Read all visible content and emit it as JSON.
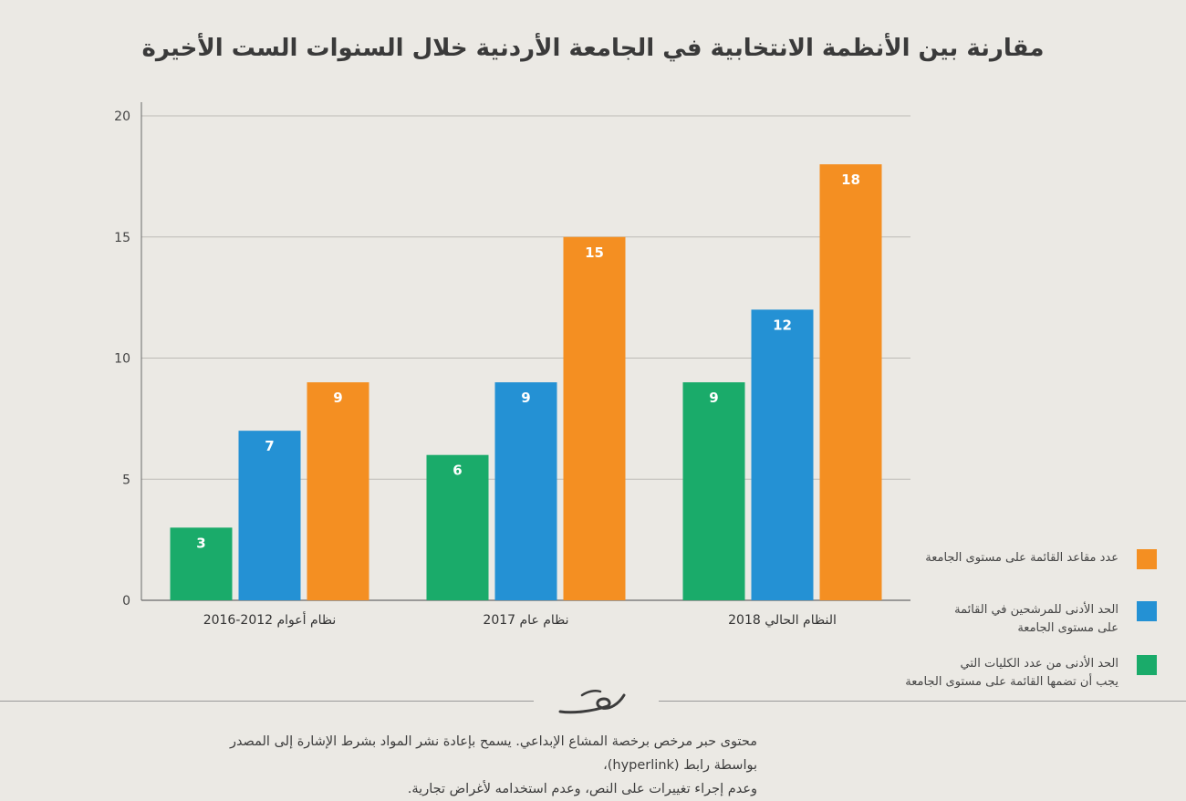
{
  "colors": {
    "green": "#1aab6a",
    "blue": "#2491d4",
    "orange": "#f48f22",
    "grid": "#bdbbb6",
    "axis": "#6a6a6a"
  },
  "chart_data": {
    "type": "bar",
    "title": "مقارنة بين الأنظمة الانتخابية في الجامعة الأردنية خلال السنوات الست الأخيرة",
    "categories": [
      "نظام أعوام 2012-2016",
      "نظام عام 2017",
      "النظام الحالي 2018"
    ],
    "series": [
      {
        "name": "الحد الأدنى من عدد الكليات التي يجب أن تضمها القائمة على مستوى الجامعة",
        "color": "#1aab6a",
        "values": [
          3,
          6,
          9
        ]
      },
      {
        "name": "الحد الأدنى للمرشحين في القائمة على مستوى الجامعة",
        "color": "#2491d4",
        "values": [
          7,
          9,
          12
        ]
      },
      {
        "name": "عدد مقاعد القائمة على مستوى الجامعة",
        "color": "#f48f22",
        "values": [
          9,
          15,
          18
        ]
      }
    ],
    "ylim": [
      0,
      20
    ],
    "yticks": [
      0,
      5,
      10,
      15,
      20
    ],
    "grid": true,
    "legend_position": "right"
  },
  "legend": {
    "orange_line1": "عدد مقاعد القائمة على مستوى الجامعة",
    "blue_line1": "الحد الأدنى للمرشحين في القائمة",
    "blue_line2": "على مستوى الجامعة",
    "green_line1": "الحد الأدنى من عدد الكليات التي",
    "green_line2": "يجب أن تضمها القائمة على مستوى الجامعة"
  },
  "footer": {
    "line1": "محتوى حبر مرخص برخصة المشاع الإبداعي. يسمح بإعادة نشر المواد بشرط الإشارة إلى المصدر بواسطة رابط (hyperlink)،",
    "line2": "وعدم إجراء تغييرات على النص، وعدم استخدامه لأغراض تجارية."
  },
  "logo_icon": "7iber-logo-icon"
}
